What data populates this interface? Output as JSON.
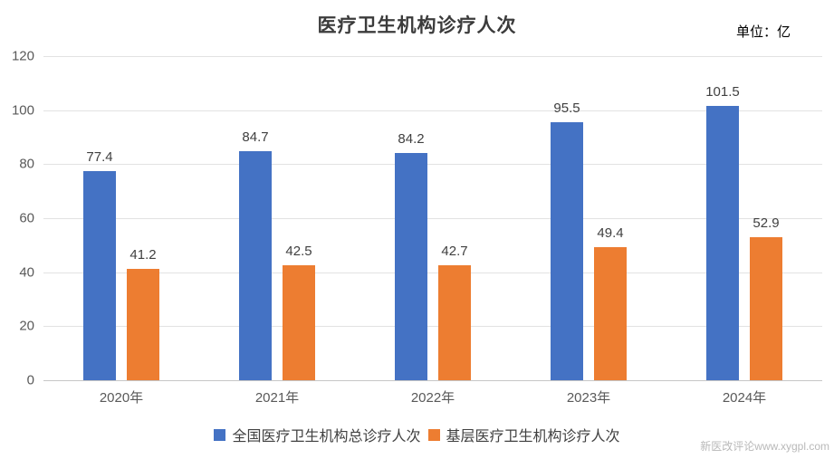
{
  "title": "医疗卫生机构诊疗人次",
  "unit_label": "单位：亿",
  "watermark": "新医改评论www.xygpl.com",
  "colors": {
    "series1": "#4472C4",
    "series2": "#ED7D31",
    "gridline": "#E2E2E2",
    "axis_line": "#C6C6C6",
    "tick_text": "#595959",
    "label_text": "#404040",
    "title_text": "#3B3B3B",
    "watermark_text": "#B9B9B9"
  },
  "chart_data": {
    "type": "bar",
    "title": "医疗卫生机构诊疗人次",
    "unit": "亿",
    "categories": [
      "2020年",
      "2021年",
      "2022年",
      "2023年",
      "2024年"
    ],
    "series": [
      {
        "name": "全国医疗卫生机构总诊疗人次",
        "color": "#4472C4",
        "values": [
          77.4,
          84.7,
          84.2,
          95.5,
          101.5
        ]
      },
      {
        "name": "基层医疗卫生机构诊疗人次",
        "color": "#ED7D31",
        "values": [
          41.2,
          42.5,
          42.7,
          49.4,
          52.9
        ]
      }
    ],
    "xlabel": "",
    "ylabel": "",
    "ylim": [
      0,
      120
    ],
    "yticks": [
      0,
      20,
      40,
      60,
      80,
      100,
      120
    ],
    "grid": true,
    "legend_position": "bottom"
  }
}
